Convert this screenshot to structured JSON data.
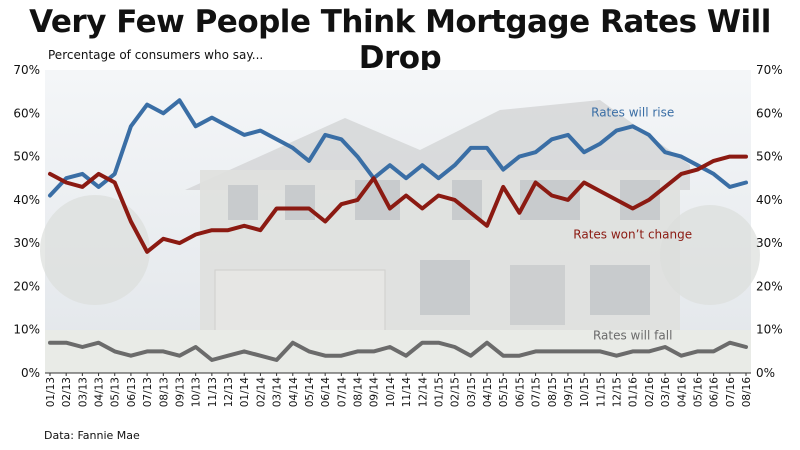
{
  "header": {
    "title": "Very Few People Think Mortgage Rates Will Drop",
    "subtitle": "Percentage of consumers who say...",
    "source": "Data: Fannie Mae"
  },
  "colors": {
    "rise": "#3a6ea5",
    "no_change": "#8b1a12",
    "fall": "#6b6b6b",
    "background_sky": "#e9eef3",
    "background_house": "#d7d8d6"
  },
  "chart_data": {
    "type": "line",
    "title": "Very Few People Think Mortgage Rates Will Drop",
    "subtitle": "Percentage of consumers who say...",
    "ylim": [
      0,
      70
    ],
    "y_ticks": [
      "0%",
      "10%",
      "20%",
      "30%",
      "40%",
      "50%",
      "60%",
      "70%"
    ],
    "y_axis_both_sides": true,
    "grid": false,
    "x": [
      "01/13",
      "02/13",
      "03/13",
      "04/13",
      "05/13",
      "06/13",
      "07/13",
      "08/13",
      "09/13",
      "10/13",
      "11/13",
      "12/13",
      "01/14",
      "02/14",
      "03/14",
      "04/14",
      "05/14",
      "06/14",
      "07/14",
      "08/14",
      "09/14",
      "10/14",
      "11/14",
      "12/14",
      "01/15",
      "02/15",
      "03/15",
      "04/15",
      "05/15",
      "06/15",
      "07/15",
      "08/15",
      "09/15",
      "10/15",
      "11/15",
      "12/15",
      "01/16",
      "02/16",
      "03/16",
      "04/16",
      "05/16",
      "06/16",
      "07/16",
      "08/16"
    ],
    "x_full": [
      "01/13",
      "",
      "02/13",
      "",
      "03/13",
      "",
      "04/13",
      "",
      "05/13",
      "",
      "06/13",
      "",
      "07/13",
      "",
      "08/13",
      "",
      "09/13",
      "",
      "10/13",
      "",
      "11/13",
      "",
      "12/13",
      "",
      "01/14",
      "",
      "02/14",
      "",
      "03/14",
      "",
      "04/14",
      "",
      "05/14",
      "",
      "06/14",
      "",
      "07/14",
      "",
      "08/14",
      "",
      "09/14",
      "",
      "10/14",
      "",
      "11/14",
      "",
      "12/14",
      "",
      "01/15",
      "",
      "02/15",
      "",
      "03/15",
      "",
      "04/15",
      "",
      "05/15",
      "",
      "06/15",
      "",
      "07/15",
      "",
      "08/15",
      "",
      "09/15",
      "",
      "10/15",
      "",
      "11/15",
      "",
      "12/15",
      "",
      "01/16",
      "",
      "02/16",
      "",
      "03/16",
      "",
      "04/16",
      "",
      "05/16",
      "",
      "06/16",
      "",
      "07/16",
      "",
      "08/16"
    ],
    "series": [
      {
        "name": "Rates will rise",
        "color": "#3a6ea5",
        "values": [
          41,
          45,
          46,
          43,
          46,
          57,
          62,
          60,
          63,
          57,
          59,
          57,
          55,
          56,
          54,
          52,
          49,
          55,
          54,
          50,
          45,
          48,
          45,
          48,
          45,
          48,
          52,
          52,
          47,
          50,
          51,
          54,
          55,
          51,
          53,
          56,
          57,
          55,
          51,
          50,
          48,
          46,
          43,
          44
        ]
      },
      {
        "name": "Rates won’t change",
        "color": "#8b1a12",
        "values": [
          46,
          44,
          43,
          46,
          44,
          35,
          28,
          31,
          30,
          32,
          33,
          33,
          34,
          33,
          38,
          38,
          38,
          35,
          39,
          40,
          45,
          38,
          41,
          38,
          41,
          40,
          37,
          34,
          43,
          37,
          44,
          41,
          40,
          44,
          42,
          40,
          38,
          40,
          43,
          46,
          47,
          49,
          50,
          50
        ]
      },
      {
        "name": "Rates will fall",
        "color": "#6b6b6b",
        "values": [
          7,
          7,
          6,
          7,
          5,
          4,
          5,
          5,
          4,
          6,
          3,
          4,
          5,
          4,
          3,
          7,
          5,
          4,
          4,
          5,
          5,
          6,
          4,
          7,
          7,
          6,
          4,
          7,
          4,
          4,
          5,
          5,
          5,
          5,
          5,
          4,
          5,
          5,
          6,
          4,
          5,
          5,
          7,
          6
        ]
      }
    ]
  }
}
